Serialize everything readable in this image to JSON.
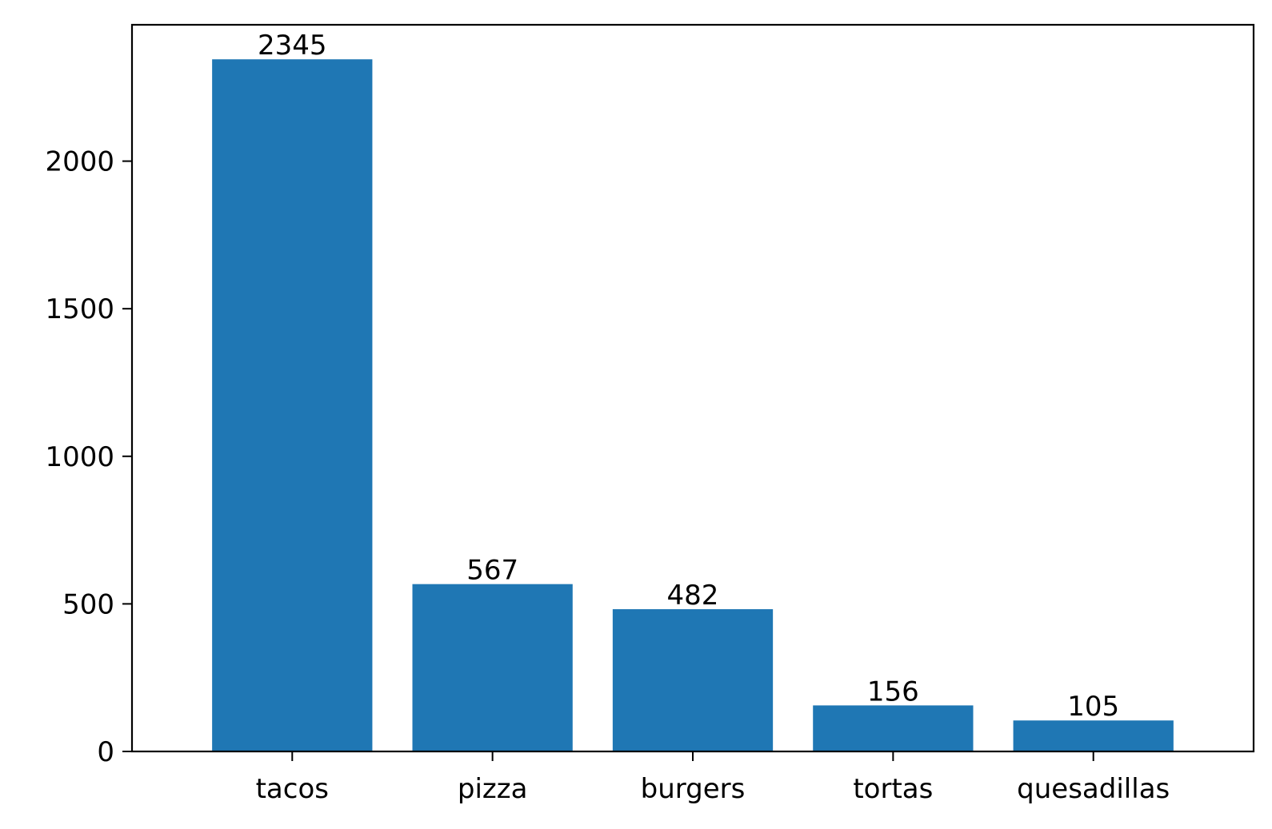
{
  "chart_data": {
    "type": "bar",
    "title": "",
    "xlabel": "",
    "ylabel": "",
    "categories": [
      "tacos",
      "pizza",
      "burgers",
      "tortas",
      "quesadillas"
    ],
    "values": [
      2345,
      567,
      482,
      156,
      105
    ],
    "data_labels": [
      "2345",
      "567",
      "482",
      "156",
      "105"
    ],
    "ylim": [
      0,
      2462
    ],
    "yticks": [
      0,
      500,
      1000,
      1500,
      2000
    ],
    "ytick_labels": [
      "0",
      "500",
      "1000",
      "1500",
      "2000"
    ],
    "grid": false,
    "legend": "none",
    "bar_color": "#1f77b4"
  }
}
